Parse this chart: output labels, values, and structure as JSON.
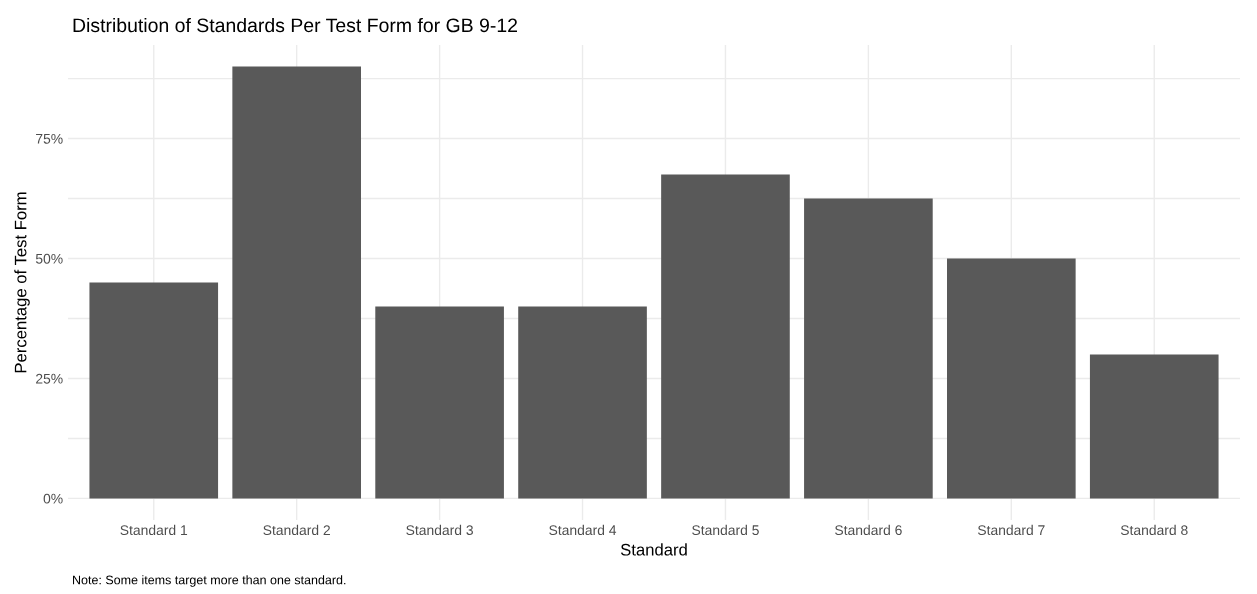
{
  "chart_data": {
    "type": "bar",
    "title": "Distribution of Standards Per Test Form for GB 9-12",
    "xlabel": "Standard",
    "ylabel": "Percentage of Test Form",
    "categories": [
      "Standard 1",
      "Standard 2",
      "Standard 3",
      "Standard 4",
      "Standard 5",
      "Standard 6",
      "Standard 7",
      "Standard 8"
    ],
    "values": [
      45,
      90,
      40,
      40,
      67.5,
      62.5,
      50,
      30
    ],
    "color": "#595959",
    "ylim": [
      -4.5,
      94.5
    ],
    "yticks": [
      {
        "value": 0,
        "label": "0%"
      },
      {
        "value": 12.5,
        "label": null
      },
      {
        "value": 25,
        "label": "25%"
      },
      {
        "value": 37.5,
        "label": null
      },
      {
        "value": 50,
        "label": "50%"
      },
      {
        "value": 62.5,
        "label": null
      },
      {
        "value": 75,
        "label": "75%"
      },
      {
        "value": 87.5,
        "label": null
      }
    ],
    "grid": true,
    "legend": false,
    "annotations": [
      "Note: Some items target more than one standard."
    ]
  }
}
